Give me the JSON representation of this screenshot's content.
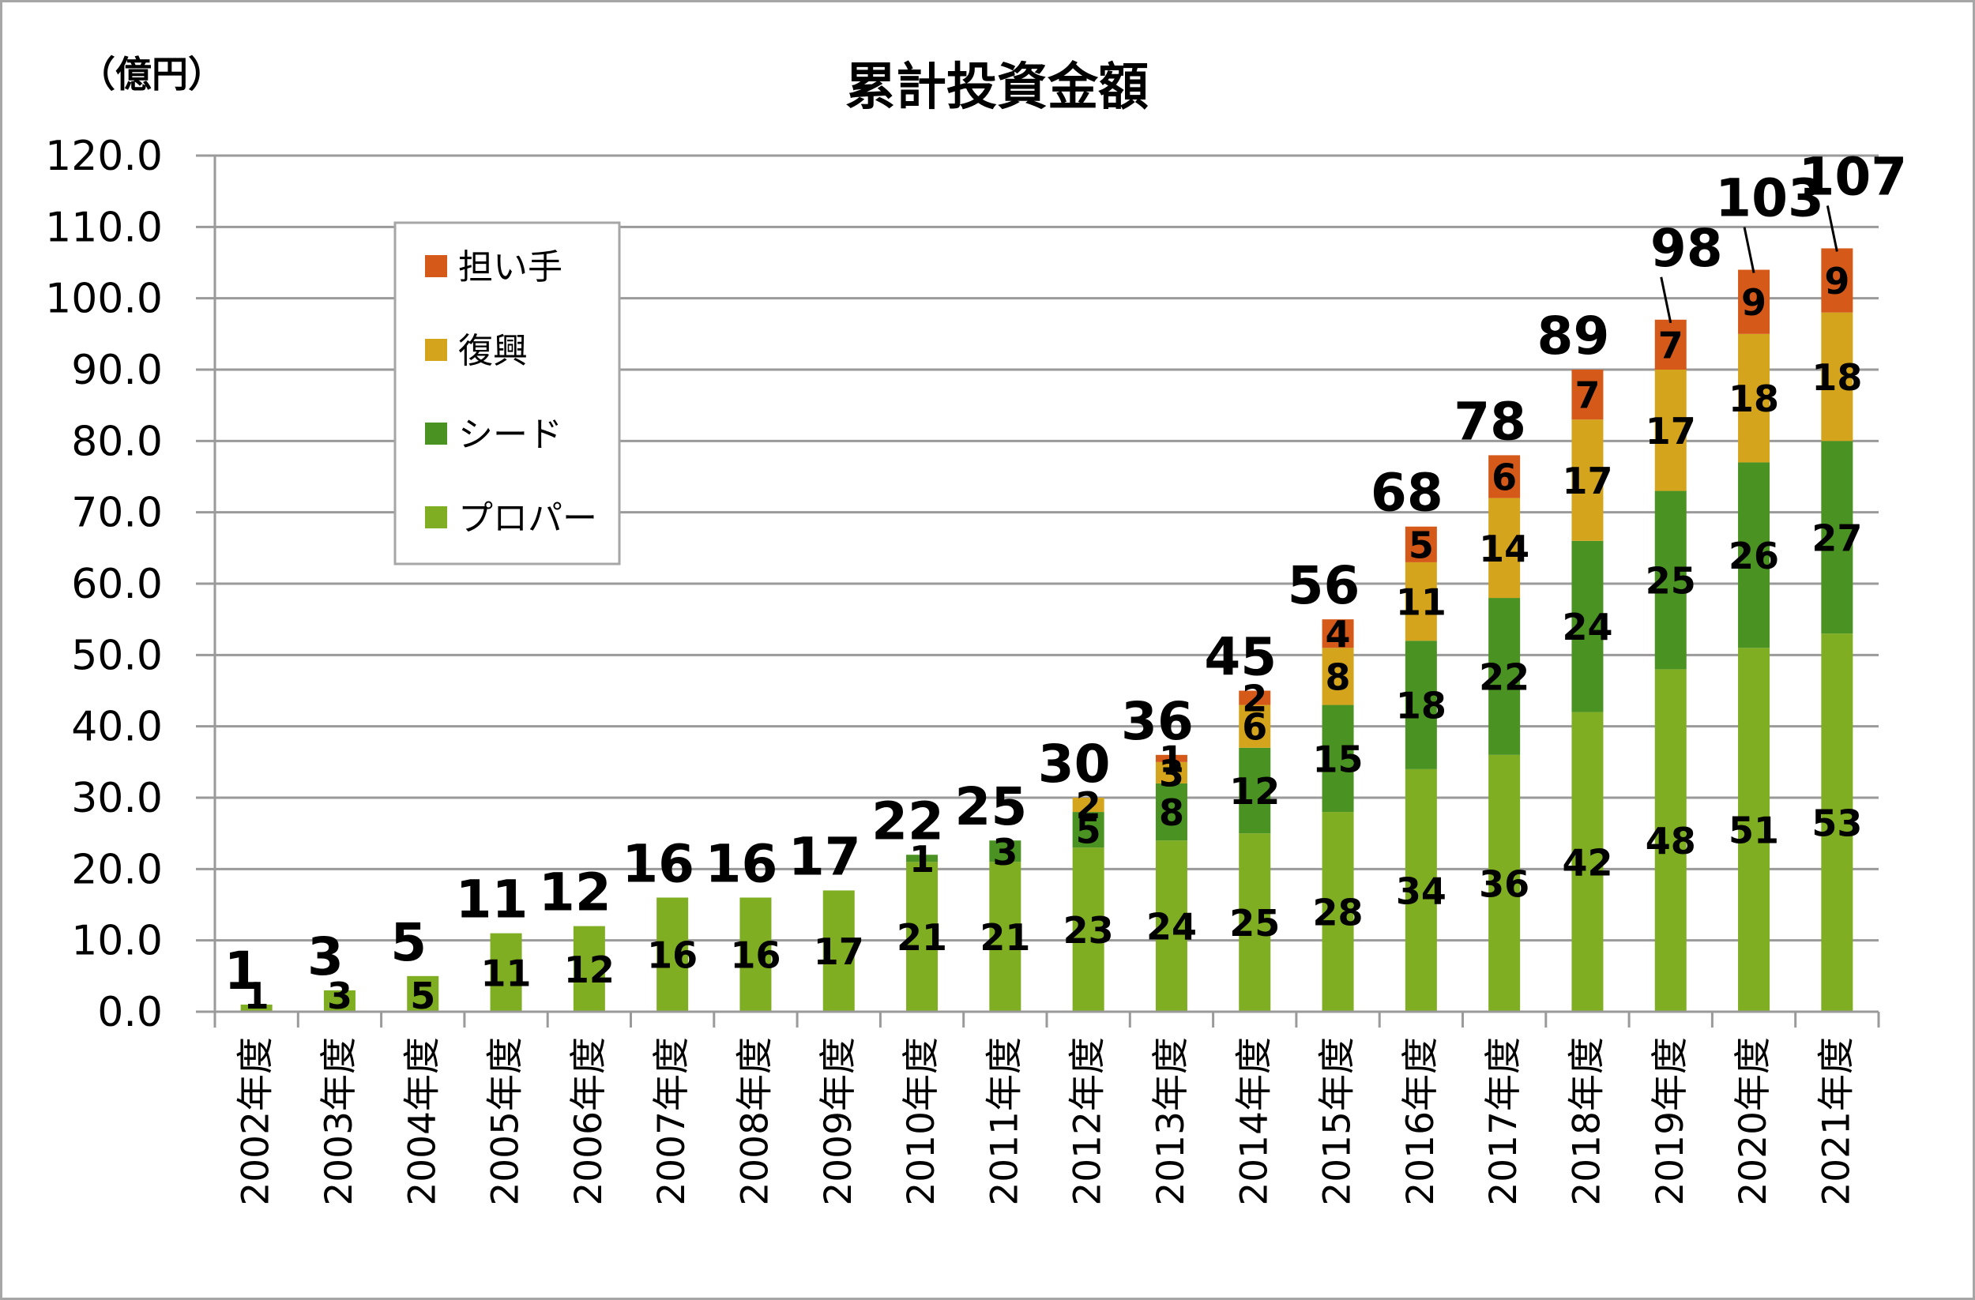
{
  "chart_data": {
    "type": "bar",
    "stacked": true,
    "title": "累計投資金額",
    "unit_label": "（億円）",
    "ylim": [
      0,
      120
    ],
    "yticks": [
      "0.0",
      "10.0",
      "20.0",
      "30.0",
      "40.0",
      "50.0",
      "60.0",
      "70.0",
      "80.0",
      "90.0",
      "100.0",
      "110.0",
      "120.0"
    ],
    "grid": true,
    "legend_position": "top-left",
    "categories": [
      "2002年度",
      "2003年度",
      "2004年度",
      "2005年度",
      "2006年度",
      "2007年度",
      "2008年度",
      "2009年度",
      "2010年度",
      "2011年度",
      "2012年度",
      "2013年度",
      "2014年度",
      "2015年度",
      "2016年度",
      "2017年度",
      "2018年度",
      "2019年度",
      "2020年度",
      "2021年度"
    ],
    "series": [
      {
        "name": "プロパー",
        "color": "#7fae22",
        "values": [
          1,
          3,
          5,
          11,
          12,
          16,
          16,
          17,
          21,
          21,
          23,
          24,
          25,
          28,
          34,
          36,
          42,
          48,
          51,
          53
        ],
        "labels": [
          "1",
          "3",
          "5",
          "11",
          "12",
          "16",
          "16",
          "17",
          "21",
          "21",
          "23",
          "24",
          "25",
          "28",
          "34",
          "36",
          "42",
          "48",
          "51",
          "53"
        ]
      },
      {
        "name": "シード",
        "color": "#4a9222",
        "values": [
          0,
          0,
          0,
          0,
          0,
          0,
          0,
          0,
          1,
          3,
          5,
          8,
          12,
          15,
          18,
          22,
          24,
          25,
          26,
          27
        ],
        "labels": [
          "",
          "",
          "",
          "",
          "",
          "",
          "",
          "",
          "1",
          "3",
          "5",
          "8",
          "12",
          "15",
          "18",
          "22",
          "24",
          "25",
          "26",
          "27"
        ]
      },
      {
        "name": "復興",
        "color": "#d4a41c",
        "values": [
          0,
          0,
          0,
          0,
          0,
          0,
          0,
          0,
          0,
          0,
          2,
          3,
          6,
          8,
          11,
          14,
          17,
          17,
          18,
          18
        ],
        "labels": [
          "",
          "",
          "",
          "",
          "",
          "",
          "",
          "",
          "",
          "",
          "2",
          "3",
          "6",
          "8",
          "11",
          "14",
          "17",
          "17",
          "18",
          "18"
        ]
      },
      {
        "name": "担い手",
        "color": "#d55a1a",
        "values": [
          0,
          0,
          0,
          0,
          0,
          0,
          0,
          0,
          0,
          0,
          0,
          1,
          2,
          4,
          5,
          6,
          7,
          7,
          9,
          9
        ],
        "labels": [
          "",
          "",
          "",
          "",
          "",
          "",
          "",
          "",
          "",
          "",
          "",
          "1",
          "2",
          "4",
          "5",
          "6",
          "7",
          "7",
          "9",
          "9"
        ]
      }
    ],
    "totals": [
      1,
      3,
      5,
      11,
      12,
      16,
      16,
      17,
      22,
      25,
      30,
      36,
      45,
      56,
      68,
      78,
      89,
      98,
      103,
      107
    ],
    "legend": [
      {
        "name": "担い手",
        "color": "#d55a1a"
      },
      {
        "name": "復興",
        "color": "#d4a41c"
      },
      {
        "name": "シード",
        "color": "#4a9222"
      },
      {
        "name": "プロパー",
        "color": "#7fae22"
      }
    ]
  }
}
